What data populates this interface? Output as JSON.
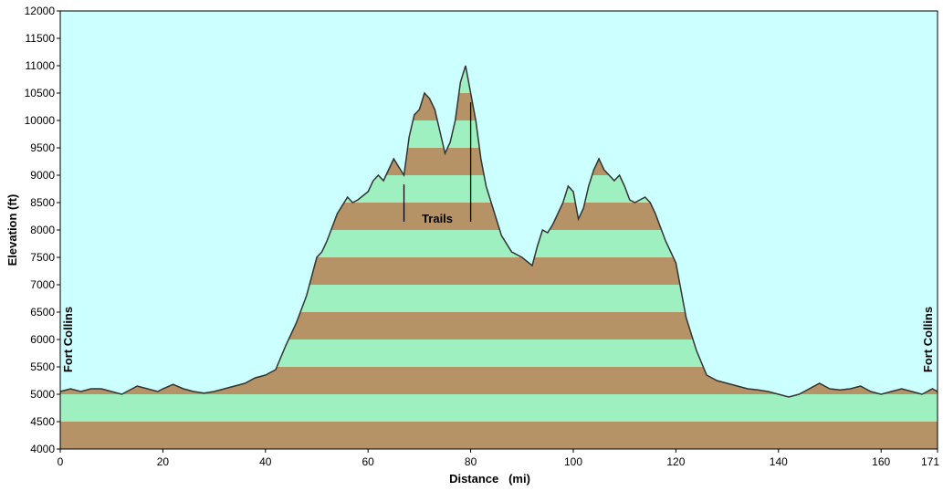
{
  "chart_data": {
    "type": "area",
    "xlabel": "Distance   (mi)",
    "ylabel": "Elevation (ft)",
    "xlim": [
      0,
      171
    ],
    "ylim": [
      4000,
      12000
    ],
    "x_ticks": [
      0,
      20,
      40,
      60,
      80,
      100,
      120,
      140,
      160,
      171
    ],
    "y_ticks": [
      4000,
      4500,
      5000,
      5500,
      6000,
      6500,
      7000,
      7500,
      8000,
      8500,
      9000,
      9500,
      10000,
      10500,
      11000,
      11500,
      12000
    ],
    "grid": false,
    "band_interval_ft": 500,
    "colors": {
      "background": "#ccffff",
      "band_light": "#9ff0c0",
      "band_dark": "#b59367",
      "profile_line": "#333333"
    },
    "annotations": {
      "start_label": "Fort Collins",
      "end_label": "Fort Collins",
      "trails_label": "Trails",
      "trail_markers_mi": [
        67,
        80
      ]
    },
    "series": [
      {
        "x": [
          0,
          2,
          4,
          6,
          8,
          10,
          12,
          14,
          15,
          17,
          19,
          20,
          22,
          24,
          26,
          28,
          30,
          32,
          34,
          36,
          38,
          40,
          42,
          44,
          46,
          48,
          50,
          51,
          52,
          54,
          56,
          57,
          58,
          60,
          61,
          62,
          63,
          64,
          65,
          66,
          67,
          68,
          69,
          70,
          71,
          72,
          73,
          74,
          75,
          76,
          77,
          78,
          79,
          80,
          81,
          82,
          83,
          84,
          85,
          86,
          88,
          90,
          92,
          93,
          94,
          95,
          96,
          97,
          98,
          99,
          100,
          101,
          102,
          103,
          104,
          105,
          106,
          107,
          108,
          109,
          110,
          111,
          112,
          113,
          114,
          115,
          116,
          118,
          120,
          122,
          124,
          126,
          128,
          130,
          132,
          134,
          136,
          138,
          140,
          142,
          144,
          146,
          148,
          150,
          152,
          154,
          156,
          158,
          160,
          162,
          164,
          166,
          168,
          170,
          171
        ],
        "y": [
          5050,
          5100,
          5050,
          5100,
          5100,
          5050,
          5000,
          5100,
          5150,
          5100,
          5050,
          5100,
          5180,
          5100,
          5050,
          5020,
          5050,
          5100,
          5150,
          5200,
          5300,
          5350,
          5450,
          5900,
          6300,
          6800,
          7500,
          7600,
          7800,
          8300,
          8600,
          8500,
          8550,
          8700,
          8900,
          9000,
          8900,
          9100,
          9300,
          9150,
          9000,
          9700,
          10100,
          10200,
          10500,
          10400,
          10200,
          9800,
          9400,
          9600,
          10000,
          10700,
          11000,
          10500,
          10000,
          9300,
          8800,
          8500,
          8200,
          7900,
          7600,
          7500,
          7350,
          7700,
          8000,
          7950,
          8100,
          8300,
          8500,
          8800,
          8700,
          8200,
          8400,
          8800,
          9100,
          9300,
          9100,
          9000,
          8900,
          9000,
          8800,
          8550,
          8500,
          8550,
          8600,
          8500,
          8300,
          7800,
          7400,
          6400,
          5800,
          5350,
          5250,
          5200,
          5150,
          5100,
          5080,
          5050,
          5000,
          4950,
          5000,
          5100,
          5200,
          5100,
          5080,
          5100,
          5150,
          5050,
          5000,
          5050,
          5100,
          5050,
          5000,
          5100,
          5050
        ]
      }
    ]
  }
}
